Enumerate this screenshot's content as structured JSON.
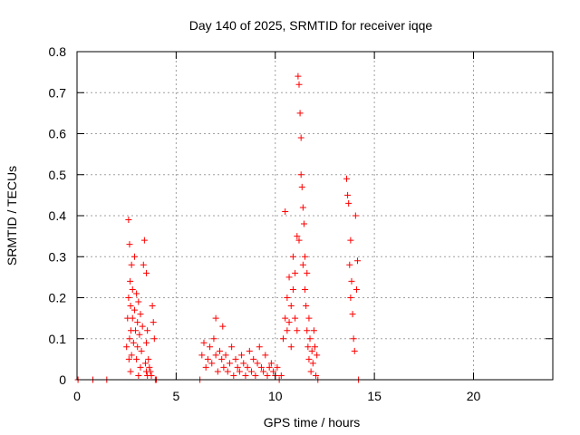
{
  "chart_data": {
    "type": "scatter",
    "title": "Day 140 of 2025, SRMTID for receiver iqqe",
    "xlabel": "GPS time / hours",
    "ylabel": "SRMTID / TECUs",
    "xlim": [
      0,
      24
    ],
    "ylim": [
      0,
      0.8
    ],
    "x_ticks": [
      0,
      5,
      10,
      15,
      20
    ],
    "y_ticks": [
      0,
      0.1,
      0.2,
      0.3,
      0.4,
      0.5,
      0.6,
      0.7,
      0.8
    ],
    "x_tick_labels": [
      "0",
      "5",
      "10",
      "15",
      "20"
    ],
    "y_tick_labels": [
      "0",
      "0.1",
      "0.2",
      "0.3",
      "0.4",
      "0.5",
      "0.6",
      "0.7",
      "0.8"
    ],
    "grid": true,
    "marker": "plus",
    "color": "#ff0000",
    "series": [
      {
        "x": [
          0.05,
          0.8,
          1.5,
          2.5,
          2.55,
          2.6,
          2.6,
          2.62,
          2.65,
          2.65,
          2.68,
          2.7,
          2.7,
          2.72,
          2.75,
          2.75,
          2.8,
          2.8,
          2.85,
          2.9,
          2.9,
          2.95,
          3.0,
          3.0,
          3.05,
          3.05,
          3.1,
          3.1,
          3.15,
          3.2,
          3.2,
          3.25,
          3.3,
          3.35,
          3.4,
          3.45,
          3.5,
          3.5,
          3.5,
          3.55,
          3.55,
          3.6,
          3.65,
          3.7,
          3.75,
          3.8,
          3.85,
          3.9,
          3.95,
          4.0,
          6.2,
          6.3,
          6.4,
          6.5,
          6.6,
          6.7,
          6.8,
          6.9,
          7.0,
          7.0,
          7.1,
          7.2,
          7.3,
          7.35,
          7.4,
          7.5,
          7.6,
          7.7,
          7.8,
          7.9,
          8.0,
          8.1,
          8.2,
          8.3,
          8.4,
          8.5,
          8.6,
          8.7,
          8.8,
          8.9,
          9.0,
          9.1,
          9.2,
          9.3,
          9.4,
          9.5,
          9.6,
          9.7,
          9.8,
          9.9,
          10.0,
          10.1,
          10.2,
          10.3,
          10.4,
          10.5,
          10.5,
          10.6,
          10.6,
          10.7,
          10.7,
          10.8,
          10.8,
          10.9,
          10.9,
          11.0,
          11.0,
          11.1,
          11.1,
          11.15,
          11.2,
          11.2,
          11.25,
          11.3,
          11.3,
          11.35,
          11.4,
          11.4,
          11.45,
          11.5,
          11.5,
          11.55,
          11.6,
          11.6,
          11.65,
          11.7,
          11.7,
          11.75,
          11.8,
          11.85,
          11.9,
          11.95,
          12.0,
          12.05,
          12.1,
          12.15,
          13.6,
          13.65,
          13.7,
          13.75,
          13.8,
          13.8,
          13.85,
          13.9,
          13.95,
          14.0,
          14.05,
          14.1,
          14.15,
          14.2
        ],
        "y": [
          0.0,
          0.0,
          0.0,
          0.08,
          0.15,
          0.39,
          0.2,
          0.05,
          0.33,
          0.1,
          0.24,
          0.18,
          0.02,
          0.12,
          0.28,
          0.06,
          0.22,
          0.15,
          0.09,
          0.3,
          0.17,
          0.12,
          0.21,
          0.05,
          0.14,
          0.08,
          0.19,
          0.01,
          0.11,
          0.16,
          0.03,
          0.07,
          0.13,
          0.28,
          0.34,
          0.04,
          0.02,
          0.26,
          0.09,
          0.01,
          0.12,
          0.05,
          0.03,
          0.02,
          0.01,
          0.18,
          0.14,
          0.1,
          0.0,
          0.0,
          0.0,
          0.06,
          0.09,
          0.03,
          0.05,
          0.08,
          0.04,
          0.1,
          0.06,
          0.15,
          0.02,
          0.07,
          0.05,
          0.13,
          0.03,
          0.06,
          0.02,
          0.04,
          0.08,
          0.01,
          0.05,
          0.03,
          0.02,
          0.06,
          0.04,
          0.01,
          0.03,
          0.07,
          0.02,
          0.05,
          0.01,
          0.04,
          0.08,
          0.03,
          0.02,
          0.06,
          0.01,
          0.03,
          0.04,
          0.02,
          0.01,
          0.03,
          0.0,
          0.01,
          0.1,
          0.41,
          0.15,
          0.12,
          0.2,
          0.25,
          0.14,
          0.18,
          0.08,
          0.3,
          0.22,
          0.26,
          0.15,
          0.35,
          0.12,
          0.74,
          0.72,
          0.34,
          0.65,
          0.59,
          0.5,
          0.47,
          0.42,
          0.28,
          0.38,
          0.22,
          0.3,
          0.18,
          0.12,
          0.26,
          0.08,
          0.15,
          0.05,
          0.1,
          0.02,
          0.07,
          0.04,
          0.12,
          0.08,
          0.01,
          0.06,
          0.0,
          0.49,
          0.45,
          0.43,
          0.28,
          0.34,
          0.2,
          0.24,
          0.16,
          0.1,
          0.07,
          0.4,
          0.22,
          0.29,
          0.0
        ]
      }
    ]
  }
}
